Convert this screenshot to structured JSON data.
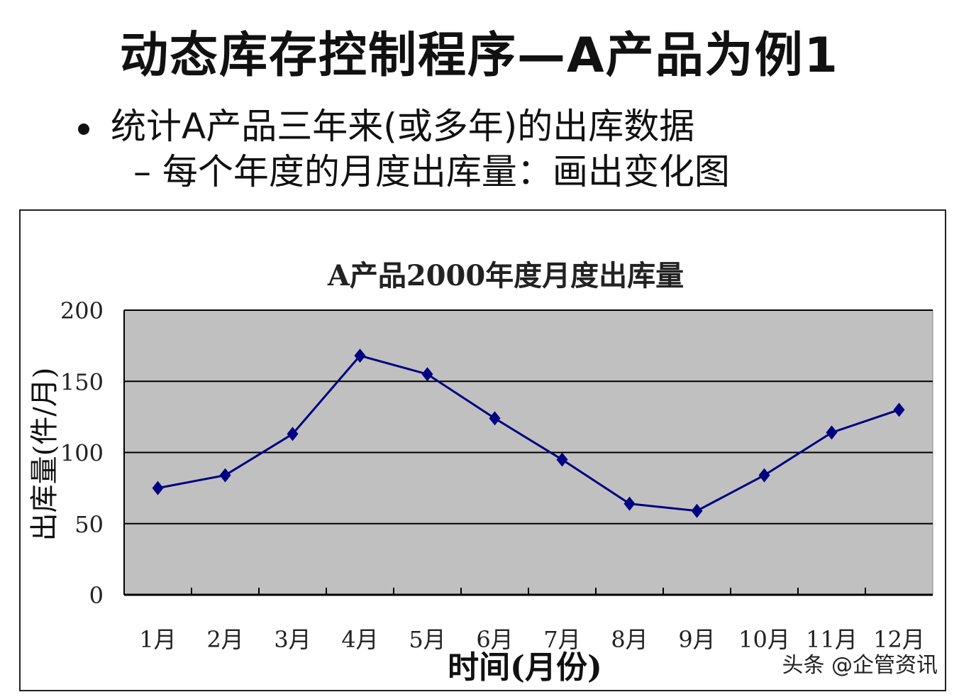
{
  "slide": {
    "title": "动态库存控制程序—A产品为例1",
    "bullet1": "统计A产品三年来(或多年)的出库数据",
    "bullet2": "– 每个年度的月度出库量：画出变化图"
  },
  "watermark": "头条 @企管资讯",
  "chart_data": {
    "type": "line",
    "title": "A产品2000年度月度出库量",
    "xlabel": "时间(月份)",
    "ylabel": "出库量(件/月)",
    "categories": [
      "1月",
      "2月",
      "3月",
      "4月",
      "5月",
      "6月",
      "7月",
      "8月",
      "9月",
      "10月",
      "11月",
      "12月"
    ],
    "values": [
      75,
      84,
      113,
      168,
      155,
      124,
      95,
      64,
      59,
      84,
      114,
      130
    ],
    "ylim": [
      0,
      200
    ],
    "yticks": [
      0,
      50,
      100,
      150,
      200
    ],
    "grid": true,
    "legend": "none",
    "colors": {
      "line": "#000080",
      "plot_bg": "#c0c0c0"
    }
  }
}
